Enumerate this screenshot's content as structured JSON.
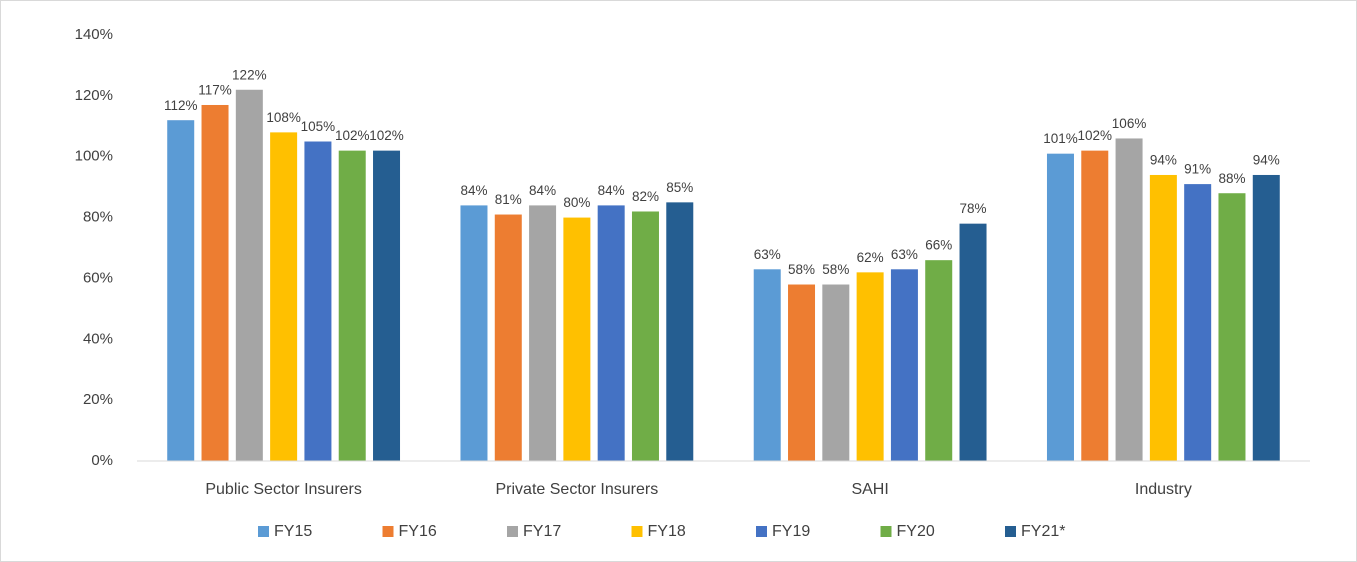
{
  "chart_data": {
    "type": "bar",
    "categories": [
      "Public Sector Insurers",
      "Private Sector Insurers",
      "SAHI",
      "Industry"
    ],
    "series": [
      {
        "name": "FY15",
        "color": "#5B9BD5",
        "values": [
          112,
          84,
          63,
          101
        ],
        "value_labels": [
          "112%",
          "84%",
          "63%",
          "101%"
        ]
      },
      {
        "name": "FY16",
        "color": "#ED7D31",
        "values": [
          117,
          81,
          58,
          102
        ],
        "value_labels": [
          "117%",
          "81%",
          "58%",
          "102%"
        ]
      },
      {
        "name": "FY17",
        "color": "#A5A5A5",
        "values": [
          122,
          84,
          58,
          106
        ],
        "value_labels": [
          "122%",
          "84%",
          "58%",
          "106%"
        ]
      },
      {
        "name": "FY18",
        "color": "#FFC000",
        "values": [
          108,
          80,
          62,
          94
        ],
        "value_labels": [
          "108%",
          "80%",
          "62%",
          "94%"
        ]
      },
      {
        "name": "FY19",
        "color": "#4472C4",
        "values": [
          105,
          84,
          63,
          91
        ],
        "value_labels": [
          "105%",
          "84%",
          "63%",
          "91%"
        ]
      },
      {
        "name": "FY20",
        "color": "#70AD47",
        "values": [
          102,
          82,
          66,
          88
        ],
        "value_labels": [
          "102%",
          "82%",
          "66%",
          "88%"
        ]
      },
      {
        "name": "FY21*",
        "color": "#255E91",
        "values": [
          102,
          85,
          78,
          94
        ],
        "value_labels": [
          "102%",
          "85%",
          "78%",
          "94%"
        ]
      }
    ],
    "ylim": [
      0,
      140
    ],
    "yticks": [
      {
        "value": 0,
        "label": "0%"
      },
      {
        "value": 20,
        "label": "20%"
      },
      {
        "value": 40,
        "label": "40%"
      },
      {
        "value": 60,
        "label": "60%"
      },
      {
        "value": 80,
        "label": "80%"
      },
      {
        "value": 100,
        "label": "100%"
      },
      {
        "value": 120,
        "label": "120%"
      },
      {
        "value": 140,
        "label": "140%"
      }
    ],
    "grid": false,
    "legend": "bottom"
  }
}
